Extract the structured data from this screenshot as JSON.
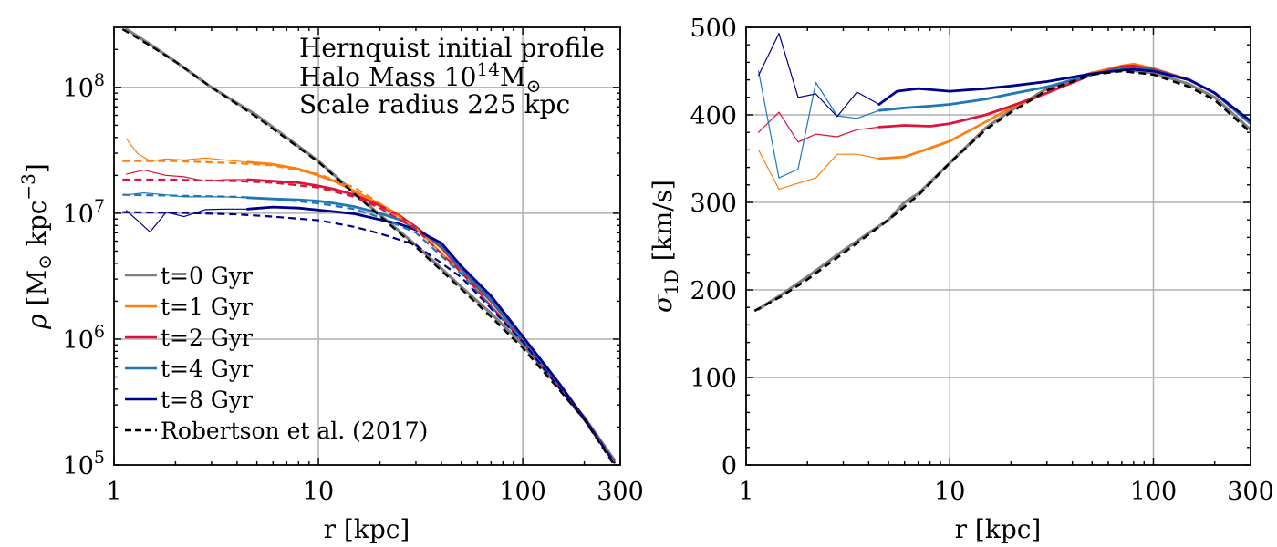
{
  "chart_data": [
    {
      "type": "line",
      "xscale": "log",
      "yscale": "log",
      "xlim": [
        1,
        300
      ],
      "ylim": [
        100000,
        300000000
      ],
      "xlabel": "r [kpc]",
      "ylabel": {
        "symbol": "ρ",
        "text": "[M",
        "sub": "⊙",
        "tail": " kpc",
        "sup": "−3",
        "close": "]"
      },
      "xticks": [
        1,
        10,
        100,
        300
      ],
      "xtick_labels": [
        "1",
        "10",
        "100",
        "300"
      ],
      "yticks": [
        100000,
        1000000,
        10000000,
        100000000
      ],
      "ytick_labels": [
        {
          "base": "10",
          "exp": "5"
        },
        {
          "base": "10",
          "exp": "6"
        },
        {
          "base": "10",
          "exp": "7"
        },
        {
          "base": "10",
          "exp": "8"
        }
      ],
      "grid": true,
      "annotations": [
        {
          "text": "Hernquist initial profile"
        },
        {
          "text": "Halo Mass 10",
          "sup": "14",
          "tail": "M",
          "sub": "⊙"
        },
        {
          "text": "Scale radius 225 kpc"
        }
      ],
      "legend": {
        "placement": "lower-left",
        "entries": [
          {
            "label": "t=0 Gyr",
            "color": "#808080",
            "style": "solid"
          },
          {
            "label": "t=1 Gyr",
            "color": "#ff7f0e",
            "style": "solid"
          },
          {
            "label": "t=2 Gyr",
            "color": "#dc143c",
            "style": "solid"
          },
          {
            "label": "t=4 Gyr",
            "color": "#1f77b4",
            "style": "solid"
          },
          {
            "label": "t=8 Gyr",
            "color": "#00008b",
            "style": "solid"
          },
          {
            "label": "Robertson et al. (2017)",
            "color": "#000000",
            "style": "dashed"
          }
        ]
      },
      "series": [
        {
          "name": "t=0 Gyr",
          "color": "#808080",
          "dash": false,
          "width": 3.2,
          "x": [
            1.15,
            1.5,
            2,
            3,
            5,
            7,
            10,
            15,
            20,
            30,
            50,
            70,
            100,
            150,
            200,
            280
          ],
          "y": [
            290000000,
            220000000,
            160000000,
            100000000,
            60000000,
            40000000,
            26000000,
            14500000,
            9700000,
            5600000,
            2600000,
            1600000,
            900000,
            420000,
            240000,
            110000
          ]
        },
        {
          "name": "t=1 Gyr (inner)",
          "color": "#ff7f0e",
          "dash": false,
          "width": 1.2,
          "x": [
            1.15,
            1.3,
            1.5,
            1.8,
            2.2,
            2.8,
            3.5,
            4.5
          ],
          "y": [
            39000000,
            30000000,
            26000000,
            27000000,
            26500000,
            27500000,
            26500000,
            25500000
          ]
        },
        {
          "name": "t=1 Gyr",
          "color": "#ff7f0e",
          "dash": false,
          "width": 2.8,
          "x": [
            4.5,
            6,
            8,
            10,
            12,
            15,
            20,
            25,
            30,
            40,
            50,
            70,
            100,
            150,
            200,
            280
          ],
          "y": [
            25500000,
            24500000,
            22500000,
            20000000,
            18000000,
            15000000,
            11800000,
            9600000,
            7700000,
            5300000,
            3500000,
            2000000,
            1000000,
            440000,
            230000,
            105000
          ]
        },
        {
          "name": "t=2 Gyr (inner)",
          "color": "#dc143c",
          "dash": false,
          "width": 1.2,
          "x": [
            1.15,
            1.4,
            1.8,
            2.2,
            2.8,
            3.5,
            4.5
          ],
          "y": [
            20500000,
            22000000,
            20000000,
            19500000,
            18000000,
            18500000,
            18500000
          ]
        },
        {
          "name": "t=2 Gyr",
          "color": "#dc143c",
          "dash": false,
          "width": 2.8,
          "x": [
            4.5,
            6,
            8,
            10,
            12,
            15,
            20,
            25,
            30,
            40,
            50,
            70,
            100,
            150,
            200,
            280
          ],
          "y": [
            18500000,
            18000000,
            17500000,
            16500000,
            15500000,
            14000000,
            11500000,
            9500000,
            7800000,
            5400000,
            3500000,
            2000000,
            1000000,
            440000,
            230000,
            105000
          ]
        },
        {
          "name": "t=4 Gyr (inner)",
          "color": "#1f77b4",
          "dash": false,
          "width": 1.2,
          "x": [
            1.15,
            1.4,
            1.8,
            2.2,
            2.8,
            3.5,
            4.5
          ],
          "y": [
            14000000,
            14500000,
            14000000,
            13500000,
            13500000,
            13500000,
            13300000
          ]
        },
        {
          "name": "t=4 Gyr",
          "color": "#1f77b4",
          "dash": false,
          "width": 2.8,
          "x": [
            4.5,
            6,
            8,
            10,
            12,
            15,
            20,
            25,
            30,
            40,
            50,
            70,
            100,
            150,
            200,
            280
          ],
          "y": [
            13300000,
            13000000,
            12800000,
            12500000,
            12000000,
            11300000,
            10000000,
            8900000,
            7600000,
            5500000,
            3600000,
            2050000,
            1000000,
            440000,
            230000,
            105000
          ]
        },
        {
          "name": "t=8 Gyr (inner)",
          "color": "#00008b",
          "dash": false,
          "width": 1.2,
          "x": [
            1.15,
            1.3,
            1.5,
            1.8,
            2.2,
            2.8,
            3.5,
            4.5
          ],
          "y": [
            10500000,
            8800000,
            7100000,
            10200000,
            9400000,
            10700000,
            10800000,
            10800000
          ]
        },
        {
          "name": "t=8 Gyr",
          "color": "#00008b",
          "dash": false,
          "width": 2.8,
          "x": [
            4.5,
            6,
            8,
            10,
            12,
            15,
            20,
            25,
            30,
            40,
            50,
            70,
            100,
            150,
            200,
            280
          ],
          "y": [
            10800000,
            11200000,
            11000000,
            10600000,
            10300000,
            9900000,
            8900000,
            8200000,
            7400000,
            5800000,
            3800000,
            2200000,
            1050000,
            450000,
            235000,
            105000
          ]
        },
        {
          "name": "Robertson t=1",
          "color": "#ff7f0e",
          "dash": true,
          "width": 2.2,
          "x": [
            1.1,
            2,
            4,
            6,
            10,
            15,
            20,
            30,
            50,
            100,
            200,
            280
          ],
          "y": [
            26000000,
            26000000,
            25000000,
            24000000,
            20500000,
            16000000,
            12000000,
            7600000,
            3400000,
            950000,
            230000,
            105000
          ]
        },
        {
          "name": "Robertson t=2",
          "color": "#dc143c",
          "dash": true,
          "width": 2.2,
          "x": [
            1.1,
            2,
            4,
            6,
            10,
            15,
            20,
            30,
            50,
            100,
            200,
            280
          ],
          "y": [
            18500000,
            18500000,
            18000000,
            17500000,
            16000000,
            13500000,
            11000000,
            7500000,
            3400000,
            950000,
            230000,
            105000
          ]
        },
        {
          "name": "Robertson t=4",
          "color": "#1f77b4",
          "dash": true,
          "width": 2.2,
          "x": [
            1.1,
            2,
            4,
            6,
            10,
            15,
            20,
            30,
            50,
            100,
            200,
            280
          ],
          "y": [
            14000000,
            13800000,
            13500000,
            13000000,
            12000000,
            10800000,
            9300000,
            7000000,
            3300000,
            950000,
            230000,
            105000
          ]
        },
        {
          "name": "Robertson t=8",
          "color": "#00008b",
          "dash": true,
          "width": 2.2,
          "x": [
            1.1,
            2,
            4,
            6,
            10,
            15,
            20,
            30,
            50,
            100,
            200,
            280
          ],
          "y": [
            10200000,
            10100000,
            9800000,
            9400000,
            8800000,
            7800000,
            6900000,
            5600000,
            3100000,
            950000,
            230000,
            105000
          ]
        },
        {
          "name": "Robertson t=0",
          "color": "#000000",
          "dash": true,
          "width": 2.4,
          "x": [
            1.1,
            1.5,
            2,
            3,
            5,
            7,
            10,
            15,
            20,
            30,
            50,
            70,
            100,
            150,
            200,
            280
          ],
          "y": [
            290000000,
            215000000,
            160000000,
            100000000,
            58000000,
            39000000,
            25500000,
            14300000,
            9500000,
            5400000,
            2500000,
            1500000,
            850000,
            400000,
            230000,
            100000
          ]
        }
      ]
    },
    {
      "type": "line",
      "xscale": "log",
      "yscale": "linear",
      "xlim": [
        1,
        300
      ],
      "ylim": [
        0,
        500
      ],
      "xlabel": "r [kpc]",
      "ylabel": {
        "symbol": "σ",
        "sub": "1D",
        "text": " [km/s]"
      },
      "xticks": [
        1,
        10,
        100,
        300
      ],
      "xtick_labels": [
        "1",
        "10",
        "100",
        "300"
      ],
      "yticks": [
        0,
        100,
        200,
        300,
        400,
        500
      ],
      "ytick_labels": [
        "0",
        "100",
        "200",
        "300",
        "400",
        "500"
      ],
      "grid": true,
      "series": [
        {
          "name": "t=0 Gyr",
          "color": "#808080",
          "dash": false,
          "width": 3.2,
          "x": [
            1.15,
            1.5,
            2,
            3,
            4,
            5,
            6,
            7,
            8,
            10,
            15,
            20,
            30,
            50,
            70,
            100,
            150,
            200,
            300
          ],
          "y": [
            178,
            195,
            215,
            245,
            265,
            280,
            300,
            310,
            323,
            345,
            385,
            405,
            430,
            448,
            452,
            448,
            435,
            420,
            383
          ]
        },
        {
          "name": "t=1 Gyr (inner)",
          "color": "#ff7f0e",
          "dash": false,
          "width": 1.2,
          "x": [
            1.15,
            1.45,
            1.8,
            2.2,
            2.8,
            3.5,
            4.5
          ],
          "y": [
            360,
            315,
            322,
            328,
            355,
            355,
            350
          ]
        },
        {
          "name": "t=1 Gyr",
          "color": "#ff7f0e",
          "dash": false,
          "width": 2.8,
          "x": [
            4.5,
            6,
            8,
            10,
            15,
            20,
            30,
            50,
            70,
            80,
            100,
            150,
            200,
            300
          ],
          "y": [
            350,
            352,
            362,
            370,
            392,
            408,
            425,
            448,
            456,
            458,
            453,
            440,
            425,
            390
          ]
        },
        {
          "name": "t=2 Gyr (inner)",
          "color": "#dc143c",
          "dash": false,
          "width": 1.2,
          "x": [
            1.15,
            1.45,
            1.8,
            2.2,
            2.8,
            3.5,
            4.5
          ],
          "y": [
            380,
            403,
            369,
            378,
            375,
            383,
            386
          ]
        },
        {
          "name": "t=2 Gyr",
          "color": "#dc143c",
          "dash": false,
          "width": 2.8,
          "x": [
            4.5,
            6,
            8,
            10,
            15,
            20,
            30,
            50,
            70,
            80,
            100,
            150,
            200,
            300
          ],
          "y": [
            386,
            388,
            387,
            390,
            400,
            410,
            425,
            446,
            455,
            456,
            452,
            440,
            425,
            390
          ]
        },
        {
          "name": "t=4 Gyr (inner)",
          "color": "#1f77b4",
          "dash": false,
          "width": 1.2,
          "x": [
            1.15,
            1.45,
            1.8,
            2.2,
            2.8,
            3.5,
            4.5
          ],
          "y": [
            450,
            328,
            338,
            437,
            399,
            396,
            405
          ]
        },
        {
          "name": "t=4 Gyr",
          "color": "#1f77b4",
          "dash": false,
          "width": 2.8,
          "x": [
            4.5,
            6,
            8,
            10,
            15,
            20,
            30,
            50,
            70,
            80,
            100,
            150,
            200,
            300
          ],
          "y": [
            405,
            408,
            410,
            412,
            418,
            424,
            432,
            446,
            453,
            454,
            451,
            440,
            425,
            390
          ]
        },
        {
          "name": "t=8 Gyr (inner)",
          "color": "#00008b",
          "dash": false,
          "width": 1.2,
          "x": [
            1.15,
            1.45,
            1.8,
            2.2,
            2.8,
            3.5,
            4.5
          ],
          "y": [
            445,
            493,
            420,
            424,
            398,
            426,
            412
          ]
        },
        {
          "name": "t=8 Gyr",
          "color": "#00008b",
          "dash": false,
          "width": 2.8,
          "x": [
            4.5,
            5.5,
            7,
            10,
            15,
            20,
            30,
            50,
            70,
            80,
            100,
            150,
            200,
            300
          ],
          "y": [
            412,
            427,
            430,
            427,
            430,
            433,
            438,
            447,
            451,
            452,
            450,
            440,
            425,
            393
          ]
        },
        {
          "name": "Robertson",
          "color": "#000000",
          "dash": true,
          "width": 2.6,
          "x": [
            1.1,
            1.5,
            2,
            3,
            5,
            7,
            10,
            15,
            20,
            30,
            50,
            70,
            100,
            150,
            200,
            300
          ],
          "y": [
            176,
            193,
            212,
            242,
            280,
            308,
            345,
            383,
            403,
            428,
            446,
            450,
            446,
            432,
            417,
            380
          ]
        }
      ]
    }
  ]
}
